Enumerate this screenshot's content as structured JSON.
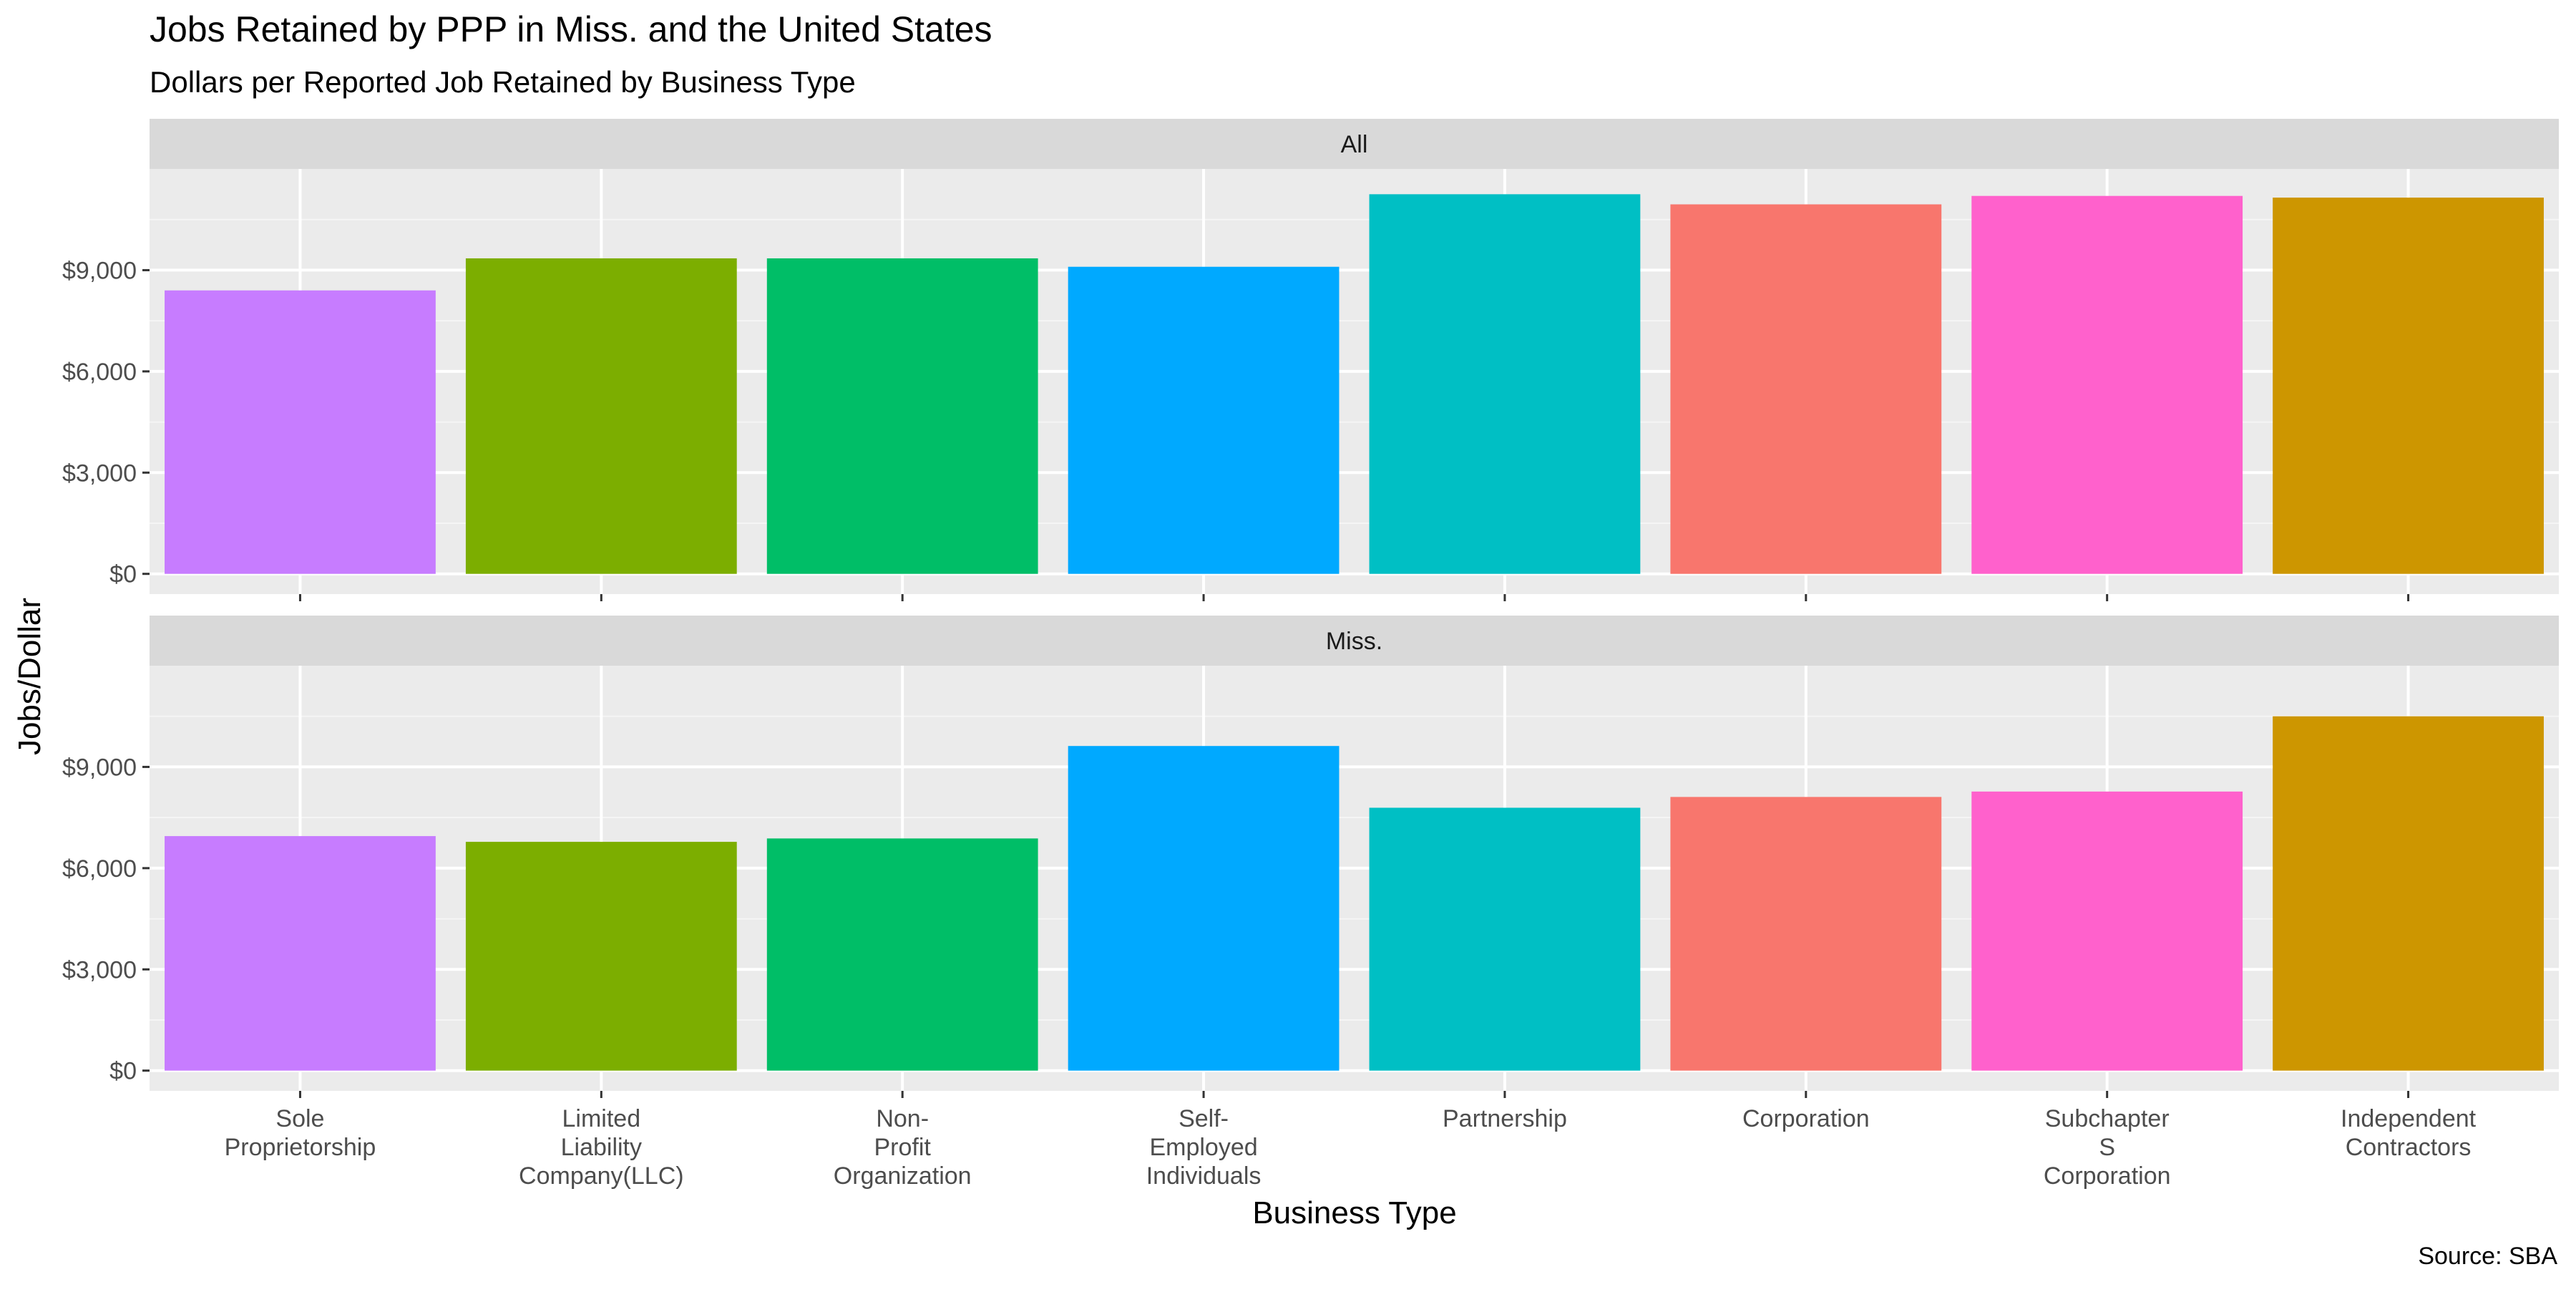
{
  "chart_data": {
    "type": "bar",
    "title": "Jobs Retained by PPP in Miss. and the United States",
    "subtitle": "Dollars per Reported Job Retained by Business Type",
    "xlabel": "Business Type",
    "ylabel": "Jobs/Dollar",
    "caption": "Source: SBA",
    "categories": [
      [
        "Sole",
        "Proprietorship"
      ],
      [
        "Limited",
        "Liability",
        "Company(LLC)"
      ],
      [
        "Non-",
        "Profit",
        "Organization"
      ],
      [
        "Self-",
        "Employed",
        "Individuals"
      ],
      [
        "Partnership"
      ],
      [
        "Corporation"
      ],
      [
        "Subchapter",
        "S",
        "Corporation"
      ],
      [
        "Independent",
        "Contractors"
      ]
    ],
    "colors": [
      "#C77CFF",
      "#7CAE00",
      "#00BE67",
      "#00A9FF",
      "#00BFC4",
      "#F8766D",
      "#FF61CC",
      "#CD9600"
    ],
    "ylim": [
      -600,
      12000
    ],
    "yticks": [
      0,
      3000,
      6000,
      9000
    ],
    "ytick_labels": [
      "$0",
      "$3,000",
      "$6,000",
      "$9,000"
    ],
    "grid": true,
    "legend": "none",
    "panels": [
      {
        "label": "All",
        "values": [
          8400,
          9350,
          9350,
          9100,
          11250,
          10950,
          11200,
          11150
        ]
      },
      {
        "label": "Miss.",
        "values": [
          6950,
          6780,
          6880,
          9620,
          7790,
          8110,
          8270,
          10500
        ]
      }
    ]
  }
}
